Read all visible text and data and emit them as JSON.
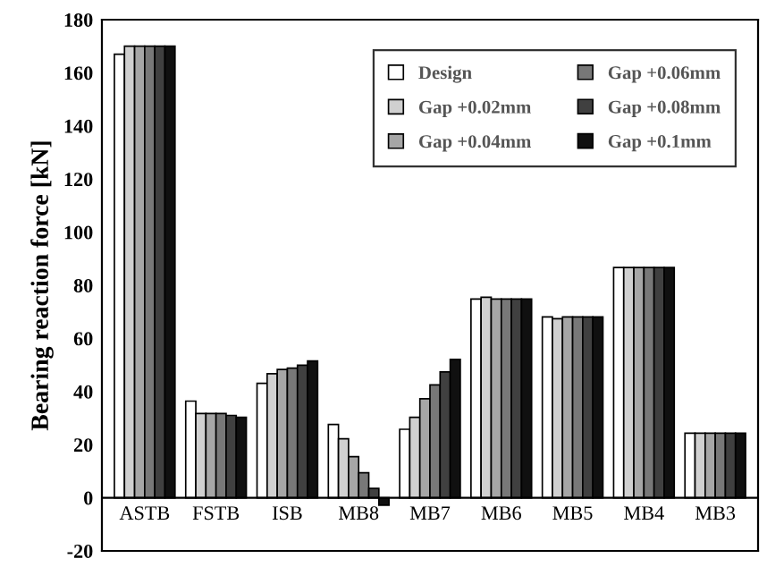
{
  "chart_data": {
    "type": "bar",
    "ylabel": "Bearing reaction force [kN]",
    "categories": [
      "ASTB",
      "FSTB",
      "ISB",
      "MB8",
      "MB7",
      "MB6",
      "MB5",
      "MB4",
      "MB3"
    ],
    "series": [
      {
        "name": "Design",
        "color": "#ffffff",
        "values": [
          167,
          36.4,
          43.1,
          27.6,
          25.8,
          74.8,
          68.1,
          86.7,
          24.3
        ]
      },
      {
        "name": "Gap +0.02mm",
        "color": "#d0d0d0",
        "values": [
          170,
          31.7,
          46.7,
          22.2,
          30.3,
          75.5,
          67.4,
          86.7,
          24.3
        ]
      },
      {
        "name": "Gap +0.04mm",
        "color": "#a6a6a6",
        "values": [
          170,
          31.7,
          48.3,
          15.5,
          37.3,
          74.8,
          68.1,
          86.7,
          24.3
        ]
      },
      {
        "name": "Gap +0.06mm",
        "color": "#787878",
        "values": [
          170,
          31.7,
          48.8,
          9.4,
          42.5,
          74.8,
          68.1,
          86.7,
          24.3
        ]
      },
      {
        "name": "Gap +0.08mm",
        "color": "#404040",
        "values": [
          170,
          31.0,
          49.9,
          3.5,
          47.4,
          74.8,
          68.1,
          86.7,
          24.3
        ]
      },
      {
        "name": "Gap +0.1mm",
        "color": "#101010",
        "values": [
          170,
          30.3,
          51.5,
          -2.8,
          52.1,
          74.8,
          68.1,
          86.7,
          24.3
        ]
      }
    ],
    "ylim": [
      -20,
      180
    ],
    "yticks": [
      -20,
      0,
      20,
      40,
      60,
      80,
      100,
      120,
      140,
      160,
      180
    ],
    "grid": false,
    "legend": "top right"
  }
}
